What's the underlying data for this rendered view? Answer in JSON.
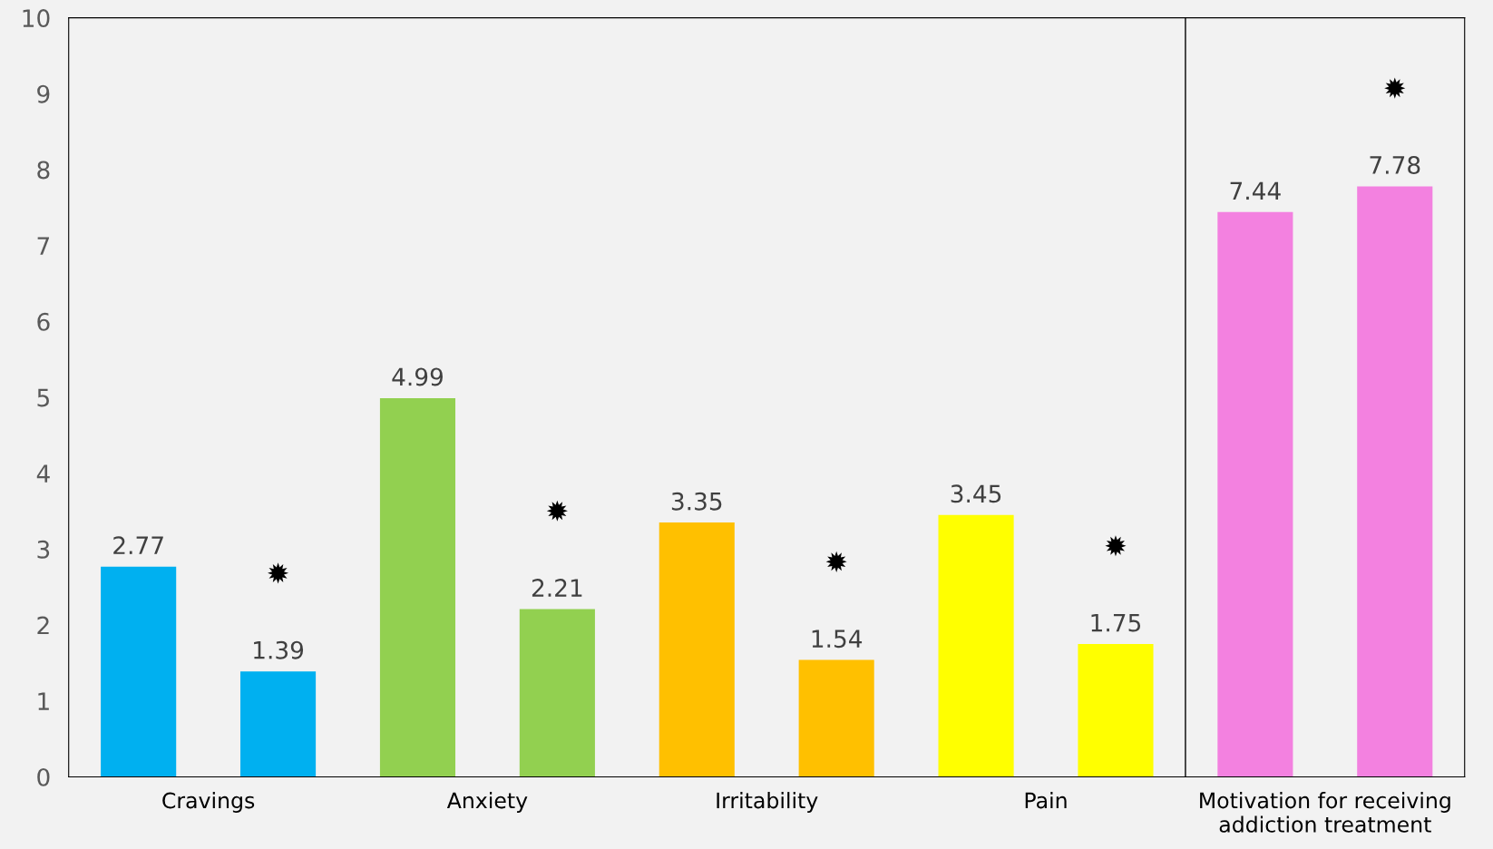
{
  "chart_data": {
    "type": "bar",
    "categories": [
      "Cravings",
      "Anxiety",
      "Irritability",
      "Pain",
      "Motivation for receiving\naddiction treatment"
    ],
    "series": [
      {
        "values": [
          2.77,
          4.99,
          3.35,
          3.45,
          7.44
        ],
        "colors": [
          "#00b0f0",
          "#92d050",
          "#ffc000",
          "#ffff00",
          "#f381e0"
        ]
      },
      {
        "values": [
          1.39,
          2.21,
          1.54,
          1.75,
          7.78
        ],
        "colors": [
          "#00b0f0",
          "#92d050",
          "#ffc000",
          "#ffff00",
          "#f381e0"
        ]
      }
    ],
    "ylim": [
      0,
      10
    ],
    "yticks": [
      0,
      1,
      2,
      3,
      4,
      5,
      6,
      7,
      8,
      9,
      10
    ],
    "data_labels": true,
    "grid": false,
    "legend": false,
    "annotations": [
      "✹",
      "✹",
      "✹",
      "✹",
      "✹"
    ]
  }
}
